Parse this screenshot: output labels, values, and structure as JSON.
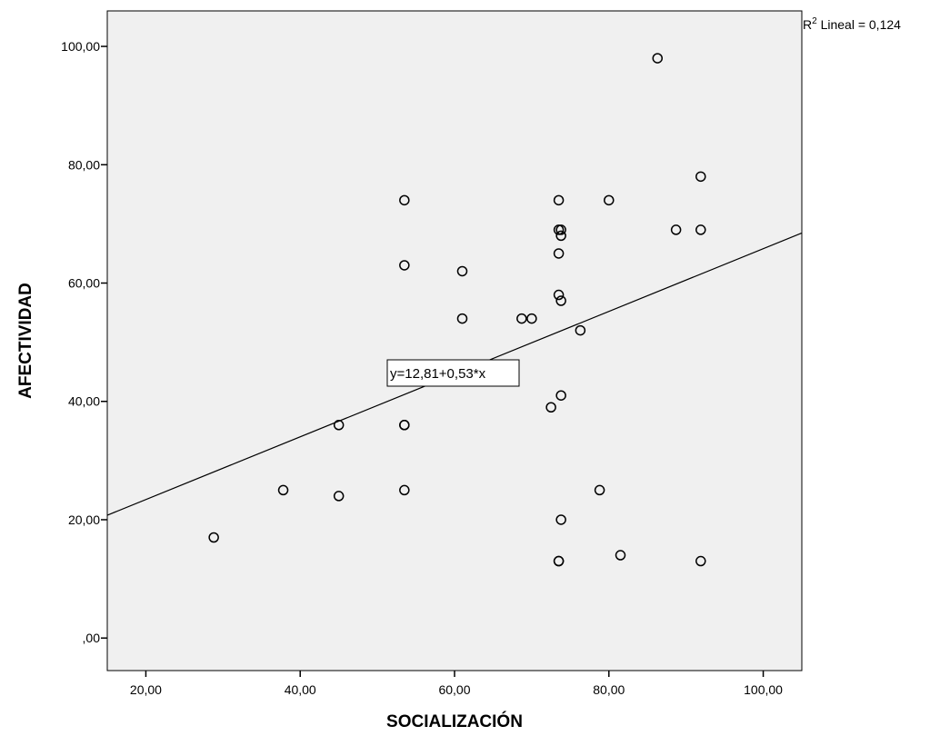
{
  "chart_data": {
    "type": "scatter",
    "xlabel": "SOCIALIZACIÓN",
    "ylabel": "AFECTIVIDAD",
    "xlim": [
      15,
      105
    ],
    "ylim": [
      -5.5,
      106
    ],
    "xticks": [
      20,
      40,
      60,
      80,
      100
    ],
    "yticks": [
      0,
      20,
      40,
      60,
      80,
      100
    ],
    "xtick_labels": [
      "20,00",
      "40,00",
      "60,00",
      "80,00",
      "100,00"
    ],
    "ytick_labels": [
      ",00",
      "20,00",
      "40,00",
      "60,00",
      "80,00",
      "100,00"
    ],
    "points": [
      {
        "x": 28.8,
        "y": 17
      },
      {
        "x": 37.8,
        "y": 25
      },
      {
        "x": 45.0,
        "y": 36
      },
      {
        "x": 45.0,
        "y": 24
      },
      {
        "x": 53.5,
        "y": 74
      },
      {
        "x": 53.5,
        "y": 63
      },
      {
        "x": 53.5,
        "y": 36
      },
      {
        "x": 53.5,
        "y": 36
      },
      {
        "x": 53.5,
        "y": 25
      },
      {
        "x": 61.0,
        "y": 62
      },
      {
        "x": 61.0,
        "y": 54
      },
      {
        "x": 68.7,
        "y": 54
      },
      {
        "x": 70.0,
        "y": 54
      },
      {
        "x": 72.5,
        "y": 39
      },
      {
        "x": 73.5,
        "y": 74
      },
      {
        "x": 73.5,
        "y": 69
      },
      {
        "x": 73.8,
        "y": 69
      },
      {
        "x": 73.8,
        "y": 68
      },
      {
        "x": 73.5,
        "y": 65
      },
      {
        "x": 73.5,
        "y": 58
      },
      {
        "x": 73.8,
        "y": 57
      },
      {
        "x": 73.8,
        "y": 41
      },
      {
        "x": 73.8,
        "y": 20
      },
      {
        "x": 73.5,
        "y": 13
      },
      {
        "x": 73.5,
        "y": 13
      },
      {
        "x": 76.3,
        "y": 52
      },
      {
        "x": 78.8,
        "y": 25
      },
      {
        "x": 80.0,
        "y": 74
      },
      {
        "x": 81.5,
        "y": 14
      },
      {
        "x": 86.3,
        "y": 98
      },
      {
        "x": 88.7,
        "y": 69
      },
      {
        "x": 91.9,
        "y": 78
      },
      {
        "x": 91.9,
        "y": 69
      },
      {
        "x": 91.9,
        "y": 13
      }
    ],
    "fit_line": {
      "intercept": 12.81,
      "slope": 0.53
    },
    "equation_label": "y=12,81+0,53*x",
    "r2_prefix": "R",
    "r2_sup": "2",
    "r2_suffix": " Lineal = 0,124",
    "colors": {
      "plot_background": "#f0f0f0",
      "marker": "#000000",
      "line": "#000000"
    }
  }
}
